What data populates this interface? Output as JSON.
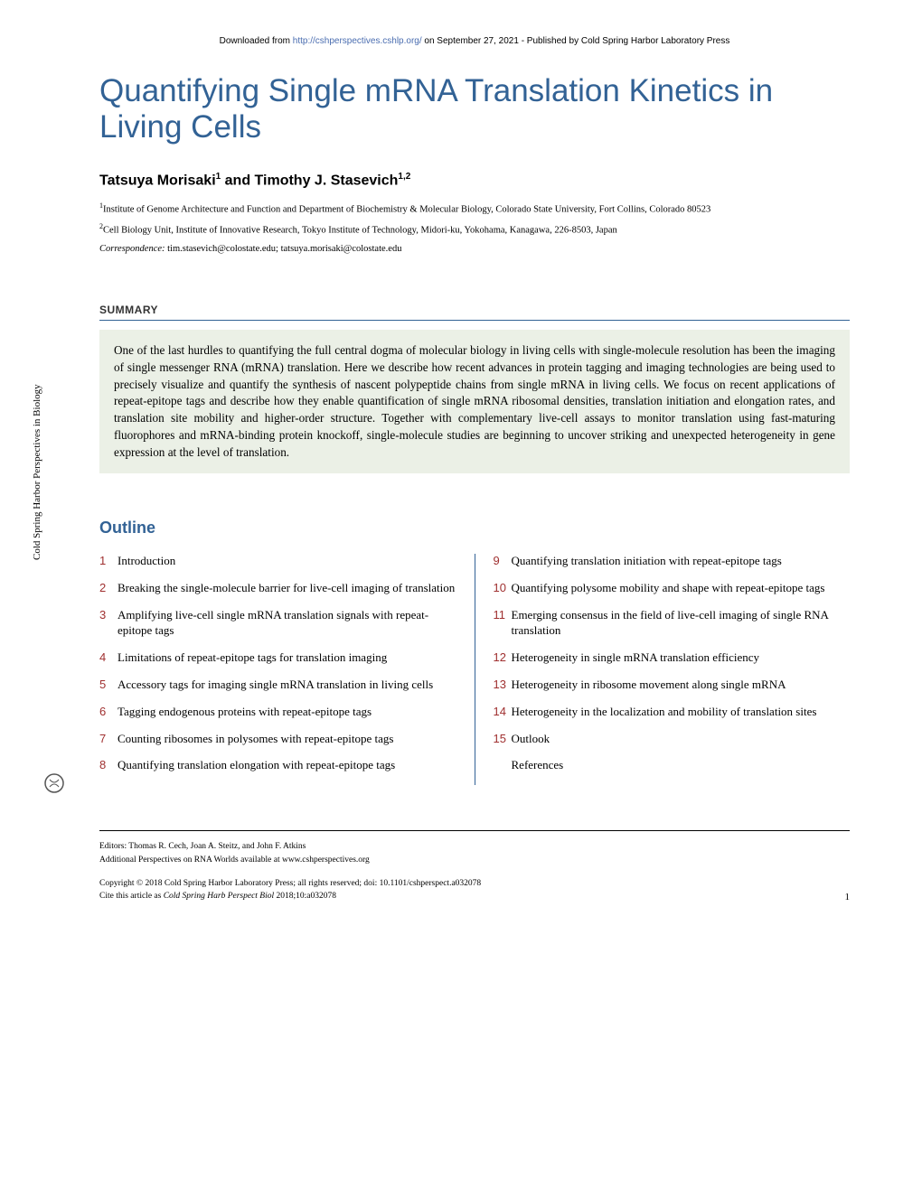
{
  "banner": {
    "prefix": "Downloaded from ",
    "link_text": "http://cshperspectives.cshlp.org/",
    "suffix": " on September 27, 2021 - Published by Cold Spring Harbor Laboratory Press",
    "link_color": "#4a6db0"
  },
  "title": "Quantifying Single mRNA Translation Kinetics in Living Cells",
  "title_color": "#326295",
  "authors_html": "Tatsuya Morisaki¹ and Timothy J. Stasevich¹,²",
  "author1": "Tatsuya Morisaki",
  "author2": "Timothy J. Stasevich",
  "sup1": "1",
  "sup12": "1,2",
  "and": " and ",
  "affiliations": [
    {
      "num": "1",
      "text": "Institute of Genome Architecture and Function and Department of Biochemistry & Molecular Biology, Colorado State University, Fort Collins, Colorado 80523"
    },
    {
      "num": "2",
      "text": "Cell Biology Unit, Institute of Innovative Research, Tokyo Institute of Technology, Midori-ku, Yokohama, Kanagawa, 226-8503, Japan"
    }
  ],
  "correspondence": {
    "label": "Correspondence:",
    "emails": " tim.stasevich@colostate.edu; tatsuya.morisaki@colostate.edu"
  },
  "summary": {
    "heading": "SUMMARY",
    "body": "One of the last hurdles to quantifying the full central dogma of molecular biology in living cells with single-molecule resolution has been the imaging of single messenger RNA (mRNA) translation. Here we describe how recent advances in protein tagging and imaging technologies are being used to precisely visualize and quantify the synthesis of nascent polypeptide chains from single mRNA in living cells. We focus on recent applications of repeat-epitope tags and describe how they enable quantification of single mRNA ribosomal densities, translation initiation and elongation rates, and translation site mobility and higher-order structure. Together with complementary live-cell assays to monitor translation using fast-maturing fluorophores and mRNA-binding protein knockoff, single-molecule studies are beginning to uncover striking and unexpected heterogeneity in gene expression at the level of translation.",
    "bg_color": "#ebf0e6"
  },
  "outline": {
    "heading": "Outline",
    "num_color": "#a03030",
    "left": [
      {
        "num": "1",
        "text": "Introduction"
      },
      {
        "num": "2",
        "text": "Breaking the single-molecule barrier for live-cell imaging of translation"
      },
      {
        "num": "3",
        "text": "Amplifying live-cell single mRNA translation signals with repeat-epitope tags"
      },
      {
        "num": "4",
        "text": "Limitations of repeat-epitope tags for translation imaging"
      },
      {
        "num": "5",
        "text": "Accessory tags for imaging single mRNA translation in living cells"
      },
      {
        "num": "6",
        "text": "Tagging endogenous proteins with repeat-epitope tags"
      },
      {
        "num": "7",
        "text": "Counting ribosomes in polysomes with repeat-epitope tags"
      },
      {
        "num": "8",
        "text": "Quantifying translation elongation with repeat-epitope tags"
      }
    ],
    "right": [
      {
        "num": "9",
        "text": "Quantifying translation initiation with repeat-epitope tags"
      },
      {
        "num": "10",
        "text": "Quantifying polysome mobility and shape with repeat-epitope tags"
      },
      {
        "num": "11",
        "text": "Emerging consensus in the field of live-cell imaging of single RNA translation"
      },
      {
        "num": "12",
        "text": "Heterogeneity in single mRNA translation efficiency"
      },
      {
        "num": "13",
        "text": "Heterogeneity in ribosome movement along single mRNA"
      },
      {
        "num": "14",
        "text": "Heterogeneity in the localization and mobility of translation sites"
      },
      {
        "num": "15",
        "text": "Outlook"
      },
      {
        "num": "",
        "text": "References"
      }
    ]
  },
  "footer": {
    "editors": "Editors: Thomas R. Cech, Joan A. Steitz, and John F. Atkins",
    "additional": "Additional Perspectives on RNA Worlds available at www.cshperspectives.org",
    "copyright": "Copyright © 2018 Cold Spring Harbor Laboratory Press; all rights reserved; doi: 10.1101/cshperspect.a032078",
    "cite_prefix": "Cite this article as ",
    "cite_italic": "Cold Spring Harb Perspect Biol",
    "cite_suffix": " 2018;10:a032078"
  },
  "page_number": "1",
  "sidebar": "Cold Spring Harbor Perspectives in Biology"
}
